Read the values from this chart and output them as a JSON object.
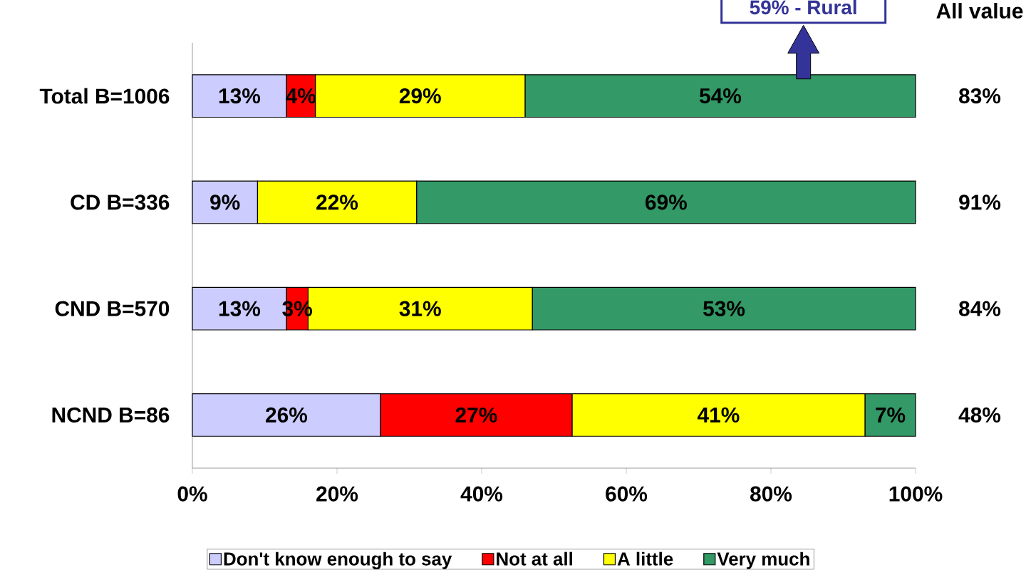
{
  "chart_data": {
    "type": "bar",
    "orientation": "horizontal",
    "stacked": true,
    "categories": [
      "Total B=1006",
      "CD B=336",
      "CND B=570",
      "NCND B=86"
    ],
    "series": [
      {
        "name": "Don't know enough to say",
        "color": "#ccccff",
        "values": [
          13,
          9,
          13,
          26
        ],
        "value_labels": [
          "13%",
          "9%",
          "13%",
          "26%"
        ]
      },
      {
        "name": "Not at all",
        "color": "#ff0000",
        "values": [
          4,
          null,
          3,
          26.5
        ],
        "value_labels": [
          "4%",
          null,
          "3%",
          "27%"
        ]
      },
      {
        "name": "A little",
        "color": "#ffff00",
        "values": [
          29,
          22,
          31,
          40.5
        ],
        "value_labels": [
          "29%",
          "22%",
          "31%",
          "41%"
        ]
      },
      {
        "name": "Very much",
        "color": "#339966",
        "values": [
          54,
          69,
          53,
          7
        ],
        "value_labels": [
          "54%",
          "69%",
          "53%",
          "7%"
        ]
      }
    ],
    "xlim": [
      0,
      100
    ],
    "xticks": [
      {
        "value": 0,
        "label": "0%"
      },
      {
        "value": 20,
        "label": "20%"
      },
      {
        "value": 40,
        "label": "40%"
      },
      {
        "value": 60,
        "label": "60%"
      },
      {
        "value": 80,
        "label": "80%"
      },
      {
        "value": 100,
        "label": "100%"
      }
    ],
    "annotations": [
      "59% - Rural",
      "All value",
      "83%",
      "91%",
      "84%",
      "48%"
    ],
    "legend": "bottom",
    "grid": false
  }
}
